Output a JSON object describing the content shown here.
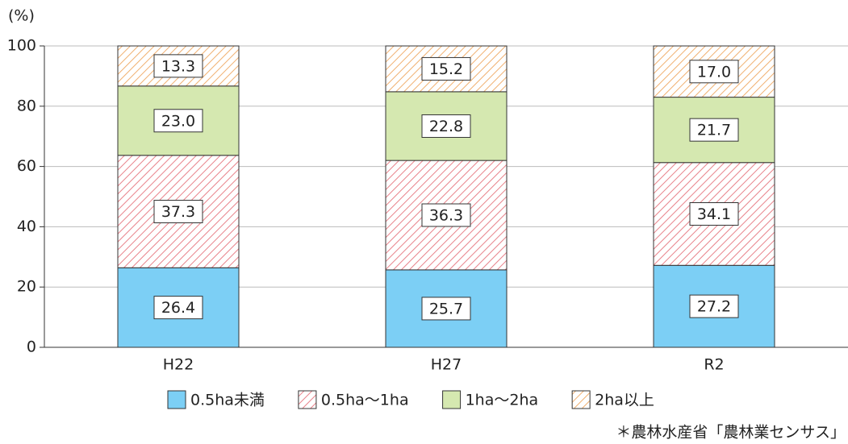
{
  "chart_data": {
    "type": "stacked_bar",
    "y_unit": "(%)",
    "categories": [
      "H22",
      "H27",
      "R2"
    ],
    "series": [
      {
        "name": "0.5ha未満",
        "color": "#7ccff5",
        "hatch": false,
        "values": [
          26.4,
          25.7,
          27.2
        ],
        "value_labels": [
          "26.4",
          "25.7",
          "27.2"
        ]
      },
      {
        "name": "0.5ha～1ha",
        "color": "#e8828a",
        "hatch": true,
        "values": [
          37.3,
          36.3,
          34.1
        ],
        "value_labels": [
          "37.3",
          "36.3",
          "34.1"
        ]
      },
      {
        "name": "1ha～2ha",
        "color": "#d5e8b0",
        "hatch": false,
        "values": [
          23.0,
          22.8,
          21.7
        ],
        "value_labels": [
          "23.0",
          "22.8",
          "21.7"
        ]
      },
      {
        "name": "2ha以上",
        "color": "#f0b070",
        "hatch": true,
        "values": [
          13.3,
          15.2,
          17.0
        ],
        "value_labels": [
          "13.3",
          "15.2",
          "17.0"
        ]
      }
    ],
    "ylim": [
      0,
      100
    ],
    "yticks": [
      0,
      20,
      40,
      60,
      80,
      100
    ],
    "grid": true,
    "source": "＊農林水産省「農林業センサス」"
  }
}
